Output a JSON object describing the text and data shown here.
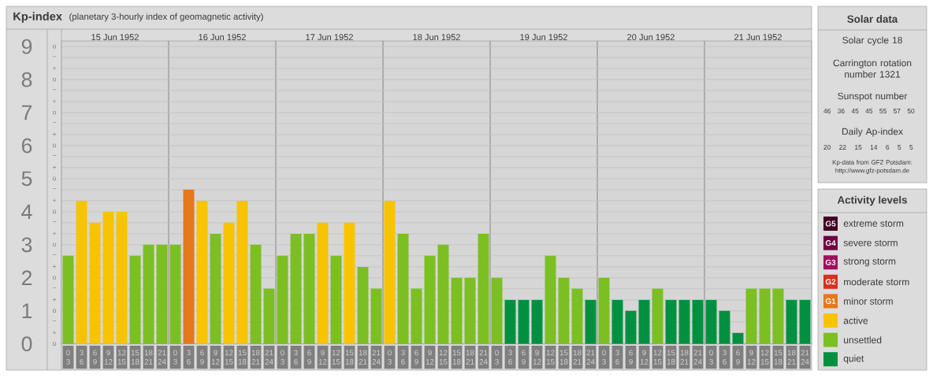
{
  "chart_data": [
    {
      "type": "bar",
      "title": "Kp-index",
      "subtitle": "(planetary 3-hourly index of geomagnetic activity)",
      "categories": [
        "0 3",
        "3 6",
        "6 9",
        "9 12",
        "12 15",
        "15 18",
        "18 21",
        "21 24",
        "0 3",
        "3 6",
        "6 9",
        "9 12",
        "12 15",
        "15 18",
        "18 21",
        "21 24",
        "0 3",
        "3 6",
        "6 9",
        "9 12",
        "12 15",
        "15 18",
        "18 21",
        "21 24",
        "0 3",
        "3 6",
        "6 9",
        "9 12",
        "12 15",
        "15 18",
        "18 21",
        "21 24",
        "0 3",
        "3 6",
        "6 9",
        "9 12",
        "12 15",
        "15 18",
        "18 21",
        "21 24",
        "0 3",
        "3 6",
        "6 9",
        "9 12",
        "12 15",
        "15 18",
        "18 21",
        "21 24",
        "0 3",
        "3 6",
        "6 9",
        "9 12",
        "12 15",
        "15 18",
        "18 21",
        "21 24"
      ],
      "series": [
        {
          "name": "extreme storm",
          "color": "#3f0022",
          "values": [
            null,
            null,
            null,
            null,
            null,
            null,
            null,
            null,
            null,
            null,
            null,
            null,
            null,
            null,
            null,
            null,
            null,
            null,
            null,
            null,
            null,
            null,
            null,
            null,
            null,
            null,
            null,
            null,
            null,
            null,
            null,
            null,
            null,
            null,
            null,
            null,
            null,
            null,
            null,
            null,
            null,
            null,
            null,
            null,
            null,
            null,
            null,
            null,
            null,
            null,
            null,
            null,
            null,
            null,
            null,
            null
          ]
        },
        {
          "name": "severe storm",
          "color": "#6e0040",
          "values": [
            null,
            null,
            null,
            null,
            null,
            null,
            null,
            null,
            null,
            null,
            null,
            null,
            null,
            null,
            null,
            null,
            null,
            null,
            null,
            null,
            null,
            null,
            null,
            null,
            null,
            null,
            null,
            null,
            null,
            null,
            null,
            null,
            null,
            null,
            null,
            null,
            null,
            null,
            null,
            null,
            null,
            null,
            null,
            null,
            null,
            null,
            null,
            null,
            null,
            null,
            null,
            null,
            null,
            null,
            null,
            null
          ]
        },
        {
          "name": "strong storm",
          "color": "#a10e5e",
          "values": [
            null,
            null,
            null,
            null,
            null,
            null,
            null,
            null,
            null,
            null,
            null,
            null,
            null,
            null,
            null,
            null,
            null,
            null,
            null,
            null,
            null,
            null,
            null,
            null,
            null,
            null,
            null,
            null,
            null,
            null,
            null,
            null,
            null,
            null,
            null,
            null,
            null,
            null,
            null,
            null,
            null,
            null,
            null,
            null,
            null,
            null,
            null,
            null,
            null,
            null,
            null,
            null,
            null,
            null,
            null,
            null
          ]
        },
        {
          "name": "moderate storm",
          "color": "#d7301f",
          "values": [
            null,
            null,
            null,
            null,
            null,
            null,
            null,
            null,
            null,
            null,
            null,
            null,
            null,
            null,
            null,
            null,
            null,
            null,
            null,
            null,
            null,
            null,
            null,
            null,
            null,
            null,
            null,
            null,
            null,
            null,
            null,
            null,
            null,
            null,
            null,
            null,
            null,
            null,
            null,
            null,
            null,
            null,
            null,
            null,
            null,
            null,
            null,
            null,
            null,
            null,
            null,
            null,
            null,
            null,
            null,
            null
          ]
        },
        {
          "name": "minor storm",
          "color": "#e5781a",
          "values": [
            null,
            null,
            null,
            null,
            null,
            null,
            null,
            null,
            null,
            4.67,
            null,
            null,
            null,
            null,
            null,
            null,
            null,
            null,
            null,
            null,
            null,
            null,
            null,
            null,
            null,
            null,
            null,
            null,
            null,
            null,
            null,
            null,
            null,
            null,
            null,
            null,
            null,
            null,
            null,
            null,
            null,
            null,
            null,
            null,
            null,
            null,
            null,
            null,
            null,
            null,
            null,
            null,
            null,
            null,
            null,
            null
          ]
        },
        {
          "name": "active",
          "color": "#f8c300",
          "values": [
            null,
            4.33,
            3.67,
            4,
            4,
            null,
            null,
            null,
            null,
            null,
            4.33,
            null,
            3.67,
            4.33,
            null,
            null,
            null,
            null,
            null,
            3.67,
            null,
            3.67,
            null,
            null,
            4.33,
            null,
            null,
            null,
            null,
            null,
            null,
            null,
            null,
            null,
            null,
            null,
            null,
            null,
            null,
            null,
            null,
            null,
            null,
            null,
            null,
            null,
            null,
            null,
            null,
            null,
            null,
            null,
            null,
            null,
            null,
            null
          ]
        },
        {
          "name": "unsettled",
          "color": "#7bbf23",
          "values": [
            2.67,
            null,
            null,
            null,
            null,
            2.67,
            3,
            3,
            3,
            null,
            null,
            3.33,
            null,
            null,
            3,
            1.67,
            2.67,
            3.33,
            3.33,
            null,
            2.67,
            null,
            2.33,
            1.67,
            null,
            3.33,
            1.67,
            2.67,
            3,
            2,
            2,
            3.33,
            2,
            null,
            null,
            null,
            2.67,
            2,
            1.67,
            null,
            2,
            null,
            null,
            null,
            1.67,
            null,
            null,
            null,
            null,
            null,
            null,
            1.67,
            1.67,
            1.67,
            null,
            null
          ]
        },
        {
          "name": "quiet",
          "color": "#009040",
          "values": [
            null,
            null,
            null,
            null,
            null,
            null,
            null,
            null,
            null,
            null,
            null,
            null,
            null,
            null,
            null,
            null,
            null,
            null,
            null,
            null,
            null,
            null,
            null,
            null,
            null,
            null,
            null,
            null,
            null,
            null,
            null,
            null,
            null,
            1.33,
            1.33,
            1.33,
            null,
            null,
            null,
            1.33,
            null,
            1.33,
            1,
            1.33,
            null,
            1.33,
            1.33,
            1.33,
            1.33,
            1,
            0.33,
            null,
            null,
            null,
            1.33,
            1.33
          ]
        }
      ],
      "ylim": [
        0,
        9.17
      ],
      "yticks": [
        0,
        1,
        2,
        3,
        4,
        5,
        6,
        7,
        8,
        9
      ],
      "x2lim": [
        "1952-06-15",
        "1952-06-22"
      ],
      "x2ticks": [
        {
          "value": "1952-06-15T12:00",
          "label": "15 Jun 1952"
        },
        {
          "value": "1952-06-16T12:00",
          "label": "16 Jun 1952"
        },
        {
          "value": "1952-06-17T12:00",
          "label": "17 Jun 1952"
        },
        {
          "value": "1952-06-18T12:00",
          "label": "18 Jun 1952"
        },
        {
          "value": "1952-06-19T12:00",
          "label": "19 Jun 1952"
        },
        {
          "value": "1952-06-20T12:00",
          "label": "20 Jun 1952"
        },
        {
          "value": "1952-06-21T12:00",
          "label": "21 Jun 1952"
        },
        {
          "value": "1952-06-16",
          "label": null
        },
        {
          "value": "1952-06-17",
          "label": null
        },
        {
          "value": "1952-06-18",
          "label": null
        },
        {
          "value": "1952-06-19",
          "label": null
        },
        {
          "value": "1952-06-20",
          "label": null
        },
        {
          "value": "1952-06-21",
          "label": null
        }
      ],
      "grid": true,
      "legend": "right",
      "legend_title": "Activity levels",
      "annotations": [
        "G5",
        "G4",
        "G3",
        "G2",
        "G1",
        "o",
        "+",
        "−",
        "o",
        "+",
        "−",
        "o",
        "+",
        "−",
        "o",
        "+",
        "−",
        "o",
        "+",
        "−",
        "o",
        "+",
        "−",
        "o",
        "+",
        "−",
        "o",
        "+",
        "−",
        "o",
        "+",
        "−",
        "o"
      ]
    },
    {
      "type": "other",
      "title": "Solar data",
      "annotations": [
        "Solar cycle 18",
        "Carrington rotation number 1321",
        "Sunspot number",
        "46 36 45 45 55 57 50",
        "Daily Ap-index",
        "20 22 15 14 6 5 5",
        "Kp-data from GFZ Potsdam: http://www.gfz-potsdam.de"
      ]
    }
  ]
}
